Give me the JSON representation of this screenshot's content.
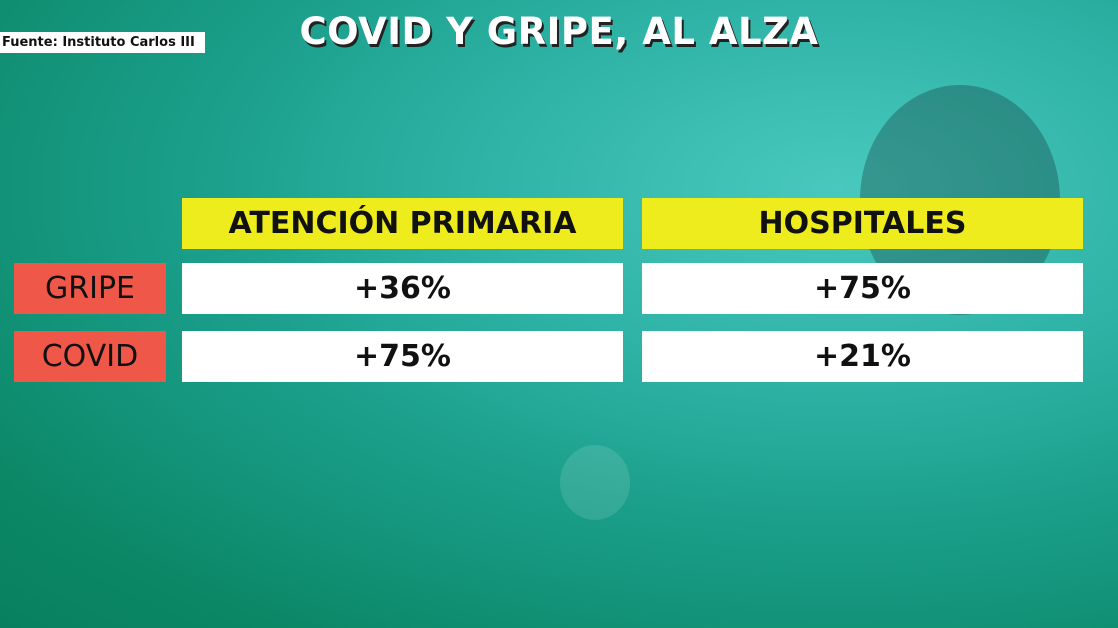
{
  "source": "Fuente: Instituto Carlos III",
  "title": "COVID Y GRIPE, AL ALZA",
  "chart_data": {
    "type": "table",
    "title": "COVID Y GRIPE, AL ALZA",
    "columns": [
      "ATENCIÓN PRIMARIA",
      "HOSPITALES"
    ],
    "rows": [
      {
        "label": "GRIPE",
        "values": [
          "+36%",
          "+75%"
        ]
      },
      {
        "label": "COVID",
        "values": [
          "+75%",
          "+21%"
        ]
      }
    ]
  },
  "colors": {
    "header": "#eeec1c",
    "row_label": "#ef5849",
    "cell": "#ffffff",
    "background": "#1a9e8a"
  }
}
